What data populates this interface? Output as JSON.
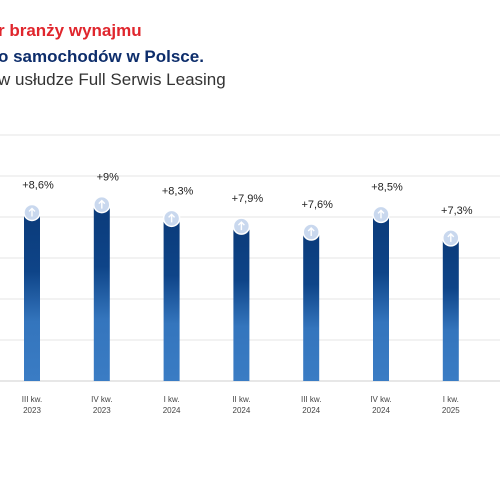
{
  "header": {
    "line1": "r branży wynajmu",
    "line2": "o samochodów w Polsce.",
    "line3": "w usłudze Full Serwis Leasing"
  },
  "chart_data": {
    "type": "bar",
    "categories": [
      [
        "III kw.",
        "2023"
      ],
      [
        "IV kw.",
        "2023"
      ],
      [
        "I kw.",
        "2024"
      ],
      [
        "II kw.",
        "2024"
      ],
      [
        "III kw.",
        "2024"
      ],
      [
        "IV kw.",
        "2024"
      ],
      [
        "I kw.",
        "2025"
      ]
    ],
    "values": [
      8.6,
      9,
      8.3,
      7.9,
      7.6,
      8.5,
      7.3
    ],
    "value_labels": [
      "+8,6%",
      "+9%",
      "+8,3%",
      "+7,9%",
      "+7,6%",
      "+8,5%",
      "+7,3%"
    ],
    "color": "#0b3b7a"
  }
}
